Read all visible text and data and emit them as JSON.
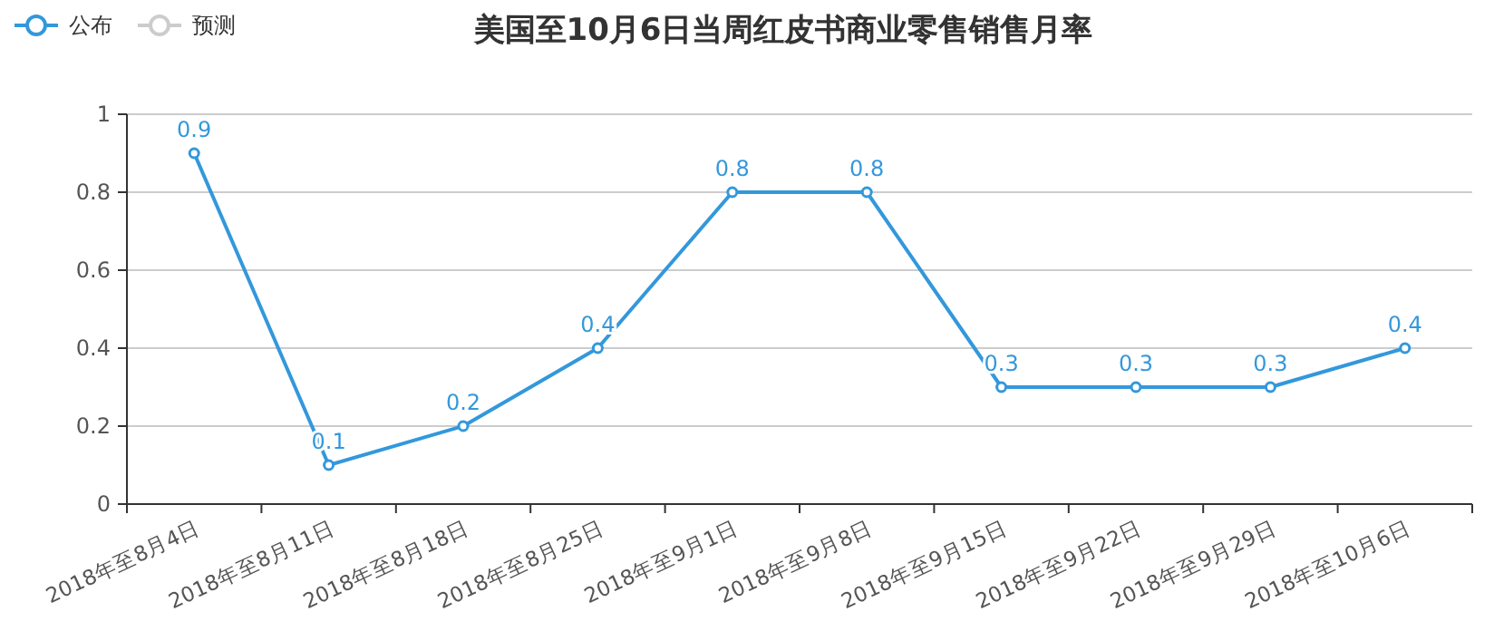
{
  "chart_data": {
    "type": "line",
    "title": "美国至10月6日当周红皮书商业零售销售月率",
    "categories": [
      "2018年至8月4日",
      "2018年至8月11日",
      "2018年至8月18日",
      "2018年至8月25日",
      "2018年至9月1日",
      "2018年至9月8日",
      "2018年至9月15日",
      "2018年至9月22日",
      "2018年至9月29日",
      "2018年至10月6日"
    ],
    "series": [
      {
        "name": "公布",
        "color": "#3398db",
        "values": [
          0.9,
          0.1,
          0.2,
          0.4,
          0.8,
          0.8,
          0.3,
          0.3,
          0.3,
          0.4
        ]
      },
      {
        "name": "预测",
        "color": "#cccccc",
        "values": [
          null,
          null,
          null,
          null,
          null,
          null,
          null,
          null,
          null,
          null
        ]
      }
    ],
    "ylim": [
      0,
      1
    ],
    "yticks": [
      0,
      0.2,
      0.4,
      0.6,
      0.8,
      1
    ],
    "grid": "y",
    "legend": "top left",
    "marker": "circle",
    "data_labels": true
  }
}
